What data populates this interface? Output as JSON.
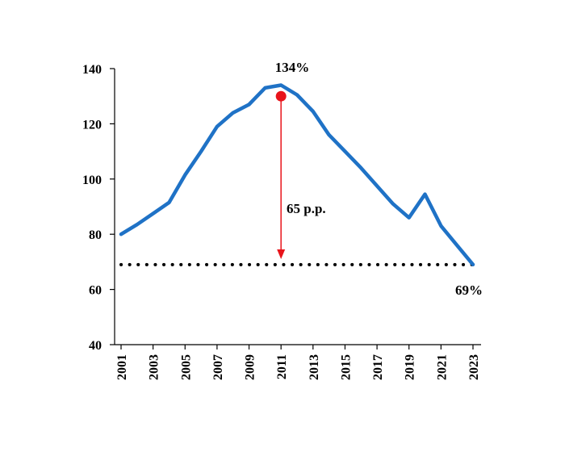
{
  "chart_data": {
    "type": "line",
    "title": "",
    "xlabel": "",
    "ylabel": "",
    "x": [
      2001,
      2002,
      2003,
      2004,
      2005,
      2006,
      2007,
      2008,
      2009,
      2010,
      2011,
      2012,
      2013,
      2014,
      2015,
      2016,
      2017,
      2018,
      2019,
      2020,
      2021,
      2022,
      2023
    ],
    "series": [
      {
        "name": "",
        "color": "#1f72c6",
        "values": [
          80,
          83.5,
          87.5,
          91.5,
          101.5,
          110,
          119,
          124,
          127,
          133,
          134,
          130.5,
          124.5,
          116,
          110,
          104,
          97.5,
          91,
          86,
          94.5,
          83,
          76,
          69
        ]
      }
    ],
    "xlim": [
      2001,
      2023
    ],
    "ylim": [
      40,
      140
    ],
    "yticks": [
      40,
      60,
      80,
      100,
      120,
      140
    ],
    "xticks": [
      2001,
      2003,
      2005,
      2007,
      2009,
      2011,
      2013,
      2015,
      2017,
      2019,
      2021,
      2023
    ],
    "grid": false,
    "legend": "none",
    "reference_line": {
      "y": 69,
      "style": "dotted",
      "color": "#000000"
    },
    "annotations": {
      "peak_label": "134%",
      "end_label": "69%",
      "drop_label": "65 p.p.",
      "marker": {
        "x": 2011,
        "y": 130,
        "color": "#e8141b"
      },
      "arrow": {
        "x": 2011,
        "from_y": 130,
        "to_y": 71,
        "color": "#e8141b"
      }
    }
  }
}
